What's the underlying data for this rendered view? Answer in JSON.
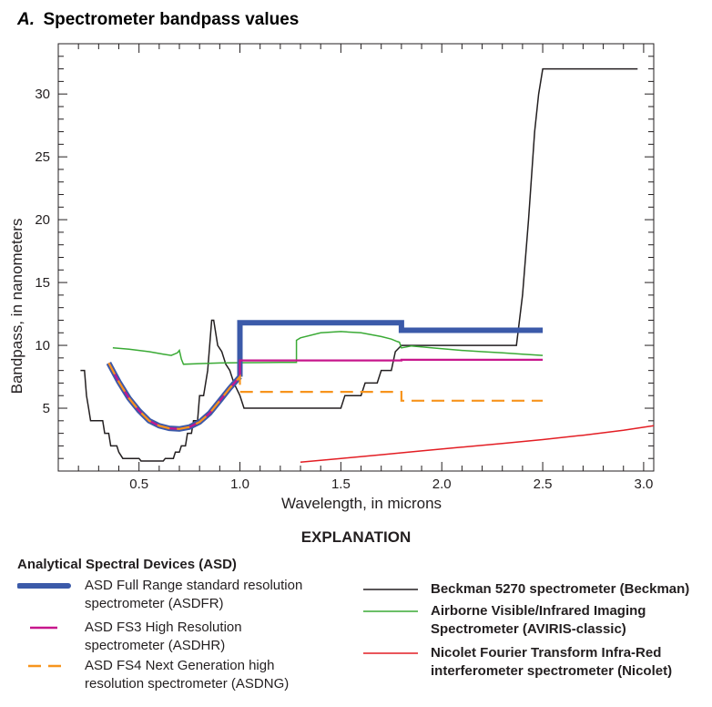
{
  "chart_data": {
    "type": "line",
    "title_prefix": "A.",
    "title": "Spectrometer bandpass values",
    "xlabel": "Wavelength, in microns",
    "ylabel": "Bandpass, in nanometers",
    "xlim": [
      0.1,
      3.05
    ],
    "ylim": [
      0,
      34
    ],
    "xticks": [
      0.5,
      1.0,
      1.5,
      2.0,
      2.5,
      3.0
    ],
    "xtick_labels": [
      "0.5",
      "1.0",
      "1.5",
      "2.0",
      "2.5",
      "3.0"
    ],
    "yticks": [
      5,
      10,
      15,
      20,
      25,
      30
    ],
    "ytick_labels": [
      "5",
      "10",
      "15",
      "20",
      "25",
      "30"
    ],
    "grid": false,
    "series": [
      {
        "name": "Beckman",
        "color": "#231f20",
        "points": [
          [
            0.21,
            8
          ],
          [
            0.23,
            8
          ],
          [
            0.24,
            6
          ],
          [
            0.25,
            5
          ],
          [
            0.26,
            4
          ],
          [
            0.32,
            4
          ],
          [
            0.33,
            3
          ],
          [
            0.35,
            3
          ],
          [
            0.36,
            2
          ],
          [
            0.39,
            2
          ],
          [
            0.4,
            1.5
          ],
          [
            0.42,
            1
          ],
          [
            0.5,
            1
          ],
          [
            0.51,
            0.8
          ],
          [
            0.62,
            0.8
          ],
          [
            0.63,
            1
          ],
          [
            0.67,
            1
          ],
          [
            0.68,
            1.5
          ],
          [
            0.7,
            1.5
          ],
          [
            0.71,
            2
          ],
          [
            0.73,
            2
          ],
          [
            0.74,
            3
          ],
          [
            0.76,
            3
          ],
          [
            0.77,
            4
          ],
          [
            0.79,
            4
          ],
          [
            0.8,
            6
          ],
          [
            0.82,
            6
          ],
          [
            0.84,
            8
          ],
          [
            0.86,
            12
          ],
          [
            0.87,
            12
          ],
          [
            0.89,
            10
          ],
          [
            0.91,
            9.5
          ],
          [
            0.93,
            8.5
          ],
          [
            0.95,
            8
          ],
          [
            0.97,
            7
          ],
          [
            1.0,
            6
          ],
          [
            1.02,
            5
          ],
          [
            1.5,
            5
          ],
          [
            1.52,
            6
          ],
          [
            1.6,
            6
          ],
          [
            1.62,
            7
          ],
          [
            1.68,
            7
          ],
          [
            1.7,
            8
          ],
          [
            1.75,
            8
          ],
          [
            1.77,
            9.5
          ],
          [
            1.8,
            10
          ],
          [
            2.37,
            10
          ],
          [
            2.4,
            14
          ],
          [
            2.43,
            20
          ],
          [
            2.46,
            27
          ],
          [
            2.48,
            30
          ],
          [
            2.5,
            32
          ],
          [
            2.97,
            32
          ]
        ]
      },
      {
        "name": "AVIRIS-classic",
        "color": "#3aaa35",
        "points": [
          [
            0.37,
            9.8
          ],
          [
            0.45,
            9.7
          ],
          [
            0.55,
            9.5
          ],
          [
            0.62,
            9.3
          ],
          [
            0.66,
            9.2
          ],
          [
            0.69,
            9.4
          ],
          [
            0.7,
            9.6
          ],
          [
            0.71,
            8.9
          ],
          [
            0.72,
            8.5
          ],
          [
            0.8,
            8.55
          ],
          [
            0.9,
            8.6
          ],
          [
            1.0,
            8.62
          ],
          [
            1.1,
            8.63
          ],
          [
            1.2,
            8.65
          ],
          [
            1.28,
            8.65
          ],
          [
            1.28,
            10.4
          ],
          [
            1.3,
            10.6
          ],
          [
            1.4,
            11.0
          ],
          [
            1.5,
            11.1
          ],
          [
            1.6,
            11.0
          ],
          [
            1.7,
            10.7
          ],
          [
            1.75,
            10.5
          ],
          [
            1.78,
            10.3
          ],
          [
            1.79,
            10.25
          ],
          [
            1.8,
            9.8
          ],
          [
            1.85,
            9.95
          ],
          [
            1.95,
            9.8
          ],
          [
            2.1,
            9.6
          ],
          [
            2.2,
            9.5
          ],
          [
            2.3,
            9.4
          ],
          [
            2.4,
            9.3
          ],
          [
            2.5,
            9.2
          ]
        ]
      },
      {
        "name": "Nicolet",
        "color": "#e31e24",
        "points": [
          [
            1.3,
            0.7
          ],
          [
            1.5,
            1.0
          ],
          [
            1.7,
            1.3
          ],
          [
            1.9,
            1.6
          ],
          [
            2.1,
            1.9
          ],
          [
            2.3,
            2.2
          ],
          [
            2.5,
            2.5
          ],
          [
            2.7,
            2.85
          ],
          [
            2.9,
            3.25
          ],
          [
            3.05,
            3.6
          ]
        ]
      },
      {
        "name": "ASDFR",
        "color": "#3b5aa9",
        "points": [
          [
            1.0,
            7.5
          ],
          [
            1.0,
            11.8
          ],
          [
            1.8,
            11.8
          ],
          [
            1.8,
            11.2
          ],
          [
            2.5,
            11.2
          ]
        ]
      },
      {
        "name": "ASDFR-vnir",
        "color": "#3b5aa9",
        "points": [
          [
            0.35,
            8.6
          ],
          [
            0.4,
            7.1
          ],
          [
            0.45,
            5.8
          ],
          [
            0.5,
            4.8
          ],
          [
            0.55,
            4.0
          ],
          [
            0.6,
            3.6
          ],
          [
            0.65,
            3.4
          ],
          [
            0.7,
            3.35
          ],
          [
            0.75,
            3.5
          ],
          [
            0.8,
            3.9
          ],
          [
            0.85,
            4.6
          ],
          [
            0.9,
            5.6
          ],
          [
            0.95,
            6.6
          ],
          [
            1.0,
            7.5
          ]
        ]
      },
      {
        "name": "ASDHR",
        "color": "#c7168c",
        "points": [
          [
            0.35,
            8.6
          ],
          [
            0.4,
            7.1
          ],
          [
            0.45,
            5.8
          ],
          [
            0.5,
            4.8
          ],
          [
            0.55,
            4.0
          ],
          [
            0.6,
            3.6
          ],
          [
            0.65,
            3.4
          ],
          [
            0.7,
            3.35
          ],
          [
            0.75,
            3.5
          ],
          [
            0.8,
            3.9
          ],
          [
            0.85,
            4.6
          ],
          [
            0.9,
            5.6
          ],
          [
            0.95,
            6.6
          ],
          [
            1.0,
            7.5
          ],
          [
            1.0,
            8.8
          ],
          [
            1.8,
            8.8
          ],
          [
            1.8,
            8.85
          ],
          [
            2.5,
            8.85
          ]
        ]
      },
      {
        "name": "ASDNG",
        "color": "#f7941d",
        "points": [
          [
            0.35,
            8.6
          ],
          [
            0.4,
            7.1
          ],
          [
            0.45,
            5.8
          ],
          [
            0.5,
            4.8
          ],
          [
            0.55,
            4.0
          ],
          [
            0.6,
            3.6
          ],
          [
            0.65,
            3.4
          ],
          [
            0.7,
            3.35
          ],
          [
            0.75,
            3.5
          ],
          [
            0.8,
            3.9
          ],
          [
            0.85,
            4.6
          ],
          [
            0.9,
            5.6
          ],
          [
            0.95,
            6.6
          ],
          [
            1.0,
            7.5
          ],
          [
            1.0,
            6.3
          ],
          [
            1.8,
            6.3
          ],
          [
            1.8,
            5.6
          ],
          [
            2.5,
            5.6
          ]
        ]
      }
    ]
  },
  "legend": {
    "explanation": "EXPLANATION",
    "asd_heading": "Analytical Spectral Devices (ASD)",
    "items": [
      {
        "key": "asdfr",
        "text": "ASD Full Range standard resolution\n  spectrometer (ASDFR)",
        "color": "#3b5aa9"
      },
      {
        "key": "asdhr",
        "text": "ASD FS3 High Resolution\n  spectrometer (ASDHR)",
        "color": "#c7168c"
      },
      {
        "key": "asdng",
        "text": "ASD FS4 Next Generation high\n  resolution spectrometer (ASDNG)",
        "color": "#f7941d"
      },
      {
        "key": "beckman",
        "text": "Beckman 5270 spectrometer (Beckman)",
        "color": "#231f20"
      },
      {
        "key": "aviris",
        "text": "Airborne Visible/Infrared Imaging\n      Spectrometer (AVIRIS-classic)",
        "color": "#3aaa35"
      },
      {
        "key": "nicolet",
        "text": "Nicolet Fourier Transform Infra-Red\n      interferometer spectrometer (Nicolet)",
        "color": "#e31e24"
      }
    ]
  }
}
